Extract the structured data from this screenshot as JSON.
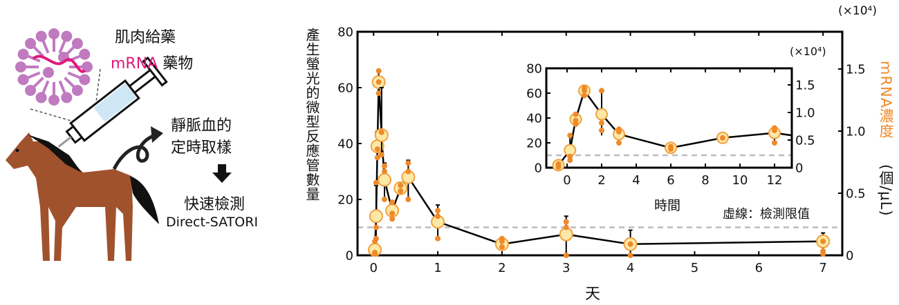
{
  "illustration": {
    "injection_label": "肌肉給藥",
    "drug_label_mrna": "mRNA",
    "drug_label_rest": "藥物",
    "sampling_line1": "靜脈血的",
    "sampling_line2": "定時取樣",
    "detect_line1": "快速檢測",
    "detect_line2": "Direct-SATORI",
    "colors": {
      "mrna": "#e0187c",
      "lipid": "#c07ac0",
      "horse": "#a0522d",
      "mane": "#111111",
      "syringe_fluid": "#cfe6f5"
    }
  },
  "chart_data": [
    {
      "type": "scatter-line",
      "title": "",
      "xlabel": "天",
      "ylabel": "產生螢光的微型反應管數量",
      "y2label_colored": "mRNA濃度",
      "y2label_unit": "(個/μL)",
      "y2_multiplier": "(×10⁴)",
      "xlim": [
        -0.25,
        7.3
      ],
      "ylim": [
        0,
        80
      ],
      "y2lim": [
        0,
        1.8
      ],
      "xticks": [
        0,
        1,
        2,
        3,
        4,
        5,
        6,
        7
      ],
      "yticks": [
        0,
        20,
        40,
        60,
        80
      ],
      "y2ticks": [
        "0",
        "0.5",
        "1.0",
        "1.5"
      ],
      "y2tick_values": [
        0,
        0.5,
        1.0,
        1.5
      ],
      "detection_limit": 10,
      "annotation": "虛線：檢測限值",
      "colors": {
        "mean_fill": "#fde9a6",
        "mean_edge": "#f0a040",
        "replicate": "#ee8a2a",
        "line": "#000000",
        "dashed": "#bbbbbb",
        "y2label": "#ee8a2a"
      },
      "points": [
        {
          "x": 0.02,
          "mean": 2,
          "reps": [
            0.5,
            1,
            5
          ],
          "err": [
            0,
            5
          ]
        },
        {
          "x": 0.04,
          "mean": 14,
          "reps": [
            6,
            10,
            26
          ],
          "err": [
            5,
            25
          ]
        },
        {
          "x": 0.06,
          "mean": 39,
          "reps": [
            35,
            38,
            44
          ],
          "err": [
            35,
            44
          ]
        },
        {
          "x": 0.08,
          "mean": 62,
          "reps": [
            58,
            62,
            66
          ],
          "err": [
            58,
            66
          ]
        },
        {
          "x": 0.125,
          "mean": 43,
          "reps": [
            36,
            44
          ],
          "err": [
            36,
            60
          ]
        },
        {
          "x": 0.17,
          "mean": 27,
          "reps": [
            20,
            30,
            32
          ],
          "err": [
            20,
            33
          ]
        },
        {
          "x": 0.29,
          "mean": 16,
          "reps": [
            13,
            15,
            19
          ],
          "err": [
            13,
            19
          ]
        },
        {
          "x": 0.42,
          "mean": 24,
          "reps": [
            23,
            25
          ],
          "err": [
            23,
            25
          ]
        },
        {
          "x": 0.54,
          "mean": 28,
          "reps": [
            20,
            30,
            33
          ],
          "err": [
            20,
            34
          ]
        },
        {
          "x": 1,
          "mean": 12,
          "reps": [
            6,
            14,
            16
          ],
          "err": [
            6,
            18
          ]
        },
        {
          "x": 2,
          "mean": 4,
          "reps": [
            3,
            5,
            6
          ],
          "err": [
            3,
            6
          ]
        },
        {
          "x": 3,
          "mean": 7.5,
          "reps": [
            0,
            10,
            12
          ],
          "err": [
            0,
            14
          ]
        },
        {
          "x": 4,
          "mean": 4,
          "reps": [
            0,
            4
          ],
          "err": [
            0,
            9
          ]
        },
        {
          "x": 7,
          "mean": 5,
          "reps": [
            0.5,
            1.5,
            5
          ],
          "err": [
            0,
            8
          ]
        }
      ]
    },
    {
      "type": "scatter-line",
      "title": "",
      "xlabel": "時間",
      "ylabel": "",
      "y2_multiplier": "(×10⁴)",
      "xlim": [
        -1.2,
        13
      ],
      "ylim": [
        0,
        80
      ],
      "y2lim": [
        0,
        1.8
      ],
      "xticks": [
        0,
        2,
        4,
        6,
        8,
        10,
        12
      ],
      "yticks": [
        0,
        20,
        40,
        60,
        80
      ],
      "y2ticks": [
        "0",
        "0.5",
        "1.0",
        "1.5"
      ],
      "y2tick_values": [
        0,
        0.5,
        1.0,
        1.5
      ],
      "detection_limit": 10,
      "points": [
        {
          "x": -0.5,
          "mean": 2,
          "reps": [
            0.5,
            2,
            3
          ],
          "err": [
            0,
            4
          ]
        },
        {
          "x": 0.17,
          "mean": 14,
          "reps": [
            6,
            9,
            26
          ],
          "err": [
            4,
            26
          ]
        },
        {
          "x": 0.5,
          "mean": 39,
          "reps": [
            35,
            38,
            43
          ],
          "err": [
            35,
            44
          ]
        },
        {
          "x": 1,
          "mean": 62,
          "reps": [
            58,
            62,
            64
          ],
          "err": [
            58,
            65
          ]
        },
        {
          "x": 2,
          "mean": 43,
          "reps": [
            30,
            36,
            62
          ],
          "err": [
            26,
            62
          ]
        },
        {
          "x": 3,
          "mean": 27,
          "reps": [
            20,
            29,
            31
          ],
          "err": [
            20,
            31
          ]
        },
        {
          "x": 6,
          "mean": 16,
          "reps": [
            15,
            17
          ],
          "err": [
            15,
            17
          ]
        },
        {
          "x": 9,
          "mean": 24,
          "reps": [
            24
          ],
          "err": [
            24,
            24
          ]
        },
        {
          "x": 12,
          "mean": 28,
          "reps": [
            20,
            30,
            32
          ],
          "err": [
            20,
            32
          ]
        },
        {
          "x": 13.2,
          "mean": 26,
          "reps": [],
          "err": [
            26,
            26
          ]
        }
      ]
    }
  ]
}
